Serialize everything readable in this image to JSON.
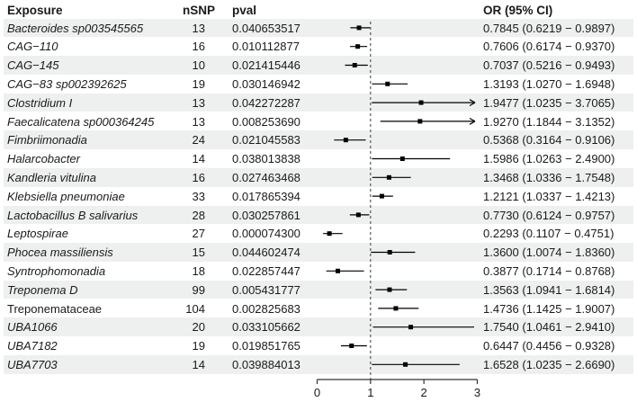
{
  "header": {
    "exposure": "Exposure",
    "nsnp": "nSNP",
    "pval": "pval",
    "or_ci": "OR (95% CI)"
  },
  "colors": {
    "stripe": "#edf0ef",
    "text": "#1a1a1a",
    "marker": "#000000",
    "axis": "#333333"
  },
  "chart_data": {
    "type": "scatter",
    "subtype": "forest-plot",
    "title": "",
    "xlabel": "",
    "ylabel": "",
    "xlim": [
      0,
      3
    ],
    "x_ticks": [
      "0",
      "1",
      "2",
      "3"
    ],
    "reference_line": 1,
    "grid": false,
    "columns": [
      "Exposure",
      "nSNP",
      "pval",
      "OR (95% CI)"
    ],
    "rows": [
      {
        "exposure": "Bacteroides sp003545565",
        "italic": true,
        "nsnp": "13",
        "pval": "0.040653517",
        "or": 0.7845,
        "ci_low": 0.6219,
        "ci_high": 0.9897,
        "or_ci_label": "0.7845 (0.6219 − 0.9897)",
        "arrow_right": false
      },
      {
        "exposure": "CAG−110",
        "italic": true,
        "nsnp": "16",
        "pval": "0.010112877",
        "or": 0.7606,
        "ci_low": 0.6174,
        "ci_high": 0.937,
        "or_ci_label": "0.7606 (0.6174 − 0.9370)",
        "arrow_right": false
      },
      {
        "exposure": "CAG−145",
        "italic": true,
        "nsnp": "10",
        "pval": "0.021415446",
        "or": 0.7037,
        "ci_low": 0.5216,
        "ci_high": 0.9493,
        "or_ci_label": "0.7037 (0.5216 − 0.9493)",
        "arrow_right": false
      },
      {
        "exposure": "CAG−83 sp002392625",
        "italic": true,
        "nsnp": "19",
        "pval": "0.030146942",
        "or": 1.3193,
        "ci_low": 1.027,
        "ci_high": 1.6948,
        "or_ci_label": "1.3193 (1.0270 − 1.6948)",
        "arrow_right": false
      },
      {
        "exposure": "Clostridium I",
        "italic": true,
        "nsnp": "13",
        "pval": "0.042272287",
        "or": 1.9477,
        "ci_low": 1.0235,
        "ci_high": 3.7065,
        "or_ci_label": "1.9477 (1.0235 − 3.7065)",
        "arrow_right": true
      },
      {
        "exposure": "Faecalicatena sp000364245",
        "italic": true,
        "nsnp": "13",
        "pval": "0.008253690",
        "or": 1.927,
        "ci_low": 1.1844,
        "ci_high": 3.1352,
        "or_ci_label": "1.9270 (1.1844 − 3.1352)",
        "arrow_right": true
      },
      {
        "exposure": "Fimbriimonadia",
        "italic": true,
        "nsnp": "24",
        "pval": "0.021045583",
        "or": 0.5368,
        "ci_low": 0.3164,
        "ci_high": 0.9106,
        "or_ci_label": "0.5368 (0.3164 − 0.9106)",
        "arrow_right": false
      },
      {
        "exposure": "Halarcobacter",
        "italic": true,
        "nsnp": "14",
        "pval": "0.038013838",
        "or": 1.5986,
        "ci_low": 1.0263,
        "ci_high": 2.49,
        "or_ci_label": "1.5986 (1.0263 − 2.4900)",
        "arrow_right": false
      },
      {
        "exposure": "Kandleria vitulina",
        "italic": true,
        "nsnp": "16",
        "pval": "0.027463468",
        "or": 1.3468,
        "ci_low": 1.0336,
        "ci_high": 1.7548,
        "or_ci_label": "1.3468 (1.0336 − 1.7548)",
        "arrow_right": false
      },
      {
        "exposure": "Klebsiella pneumoniae",
        "italic": true,
        "nsnp": "33",
        "pval": "0.017865394",
        "or": 1.2121,
        "ci_low": 1.0337,
        "ci_high": 1.4213,
        "or_ci_label": "1.2121 (1.0337 − 1.4213)",
        "arrow_right": false
      },
      {
        "exposure": "Lactobacillus B salivarius",
        "italic": true,
        "nsnp": "28",
        "pval": "0.030257861",
        "or": 0.773,
        "ci_low": 0.6124,
        "ci_high": 0.9757,
        "or_ci_label": "0.7730 (0.6124 − 0.9757)",
        "arrow_right": false
      },
      {
        "exposure": "Leptospirae",
        "italic": true,
        "nsnp": "27",
        "pval": "0.000074300",
        "or": 0.2293,
        "ci_low": 0.1107,
        "ci_high": 0.4751,
        "or_ci_label": "0.2293 (0.1107 − 0.4751)",
        "arrow_right": false
      },
      {
        "exposure": "Phocea massiliensis",
        "italic": true,
        "nsnp": "15",
        "pval": "0.044602474",
        "or": 1.36,
        "ci_low": 1.0074,
        "ci_high": 1.836,
        "or_ci_label": "1.3600 (1.0074 − 1.8360)",
        "arrow_right": false
      },
      {
        "exposure": "Syntrophomonadia",
        "italic": true,
        "nsnp": "18",
        "pval": "0.022857447",
        "or": 0.3877,
        "ci_low": 0.1714,
        "ci_high": 0.8768,
        "or_ci_label": "0.3877 (0.1714 − 0.8768)",
        "arrow_right": false
      },
      {
        "exposure": "Treponema D",
        "italic": true,
        "nsnp": "99",
        "pval": "0.005431777",
        "or": 1.3563,
        "ci_low": 1.0941,
        "ci_high": 1.6814,
        "or_ci_label": "1.3563 (1.0941 − 1.6814)",
        "arrow_right": false
      },
      {
        "exposure": "Treponemataceae",
        "italic": false,
        "nsnp": "104",
        "pval": "0.002825683",
        "or": 1.4736,
        "ci_low": 1.1425,
        "ci_high": 1.9007,
        "or_ci_label": "1.4736 (1.1425 − 1.9007)",
        "arrow_right": false
      },
      {
        "exposure": "UBA1066",
        "italic": true,
        "nsnp": "20",
        "pval": "0.033105662",
        "or": 1.754,
        "ci_low": 1.0461,
        "ci_high": 2.941,
        "or_ci_label": "1.7540 (1.0461 − 2.9410)",
        "arrow_right": false
      },
      {
        "exposure": "UBA7182",
        "italic": true,
        "nsnp": "19",
        "pval": "0.019851765",
        "or": 0.6447,
        "ci_low": 0.4456,
        "ci_high": 0.9328,
        "or_ci_label": "0.6447 (0.4456 − 0.9328)",
        "arrow_right": false
      },
      {
        "exposure": "UBA7703",
        "italic": true,
        "nsnp": "14",
        "pval": "0.039884013",
        "or": 1.6528,
        "ci_low": 1.0235,
        "ci_high": 2.669,
        "or_ci_label": "1.6528 (1.0235 − 2.6690)",
        "arrow_right": false
      }
    ]
  }
}
